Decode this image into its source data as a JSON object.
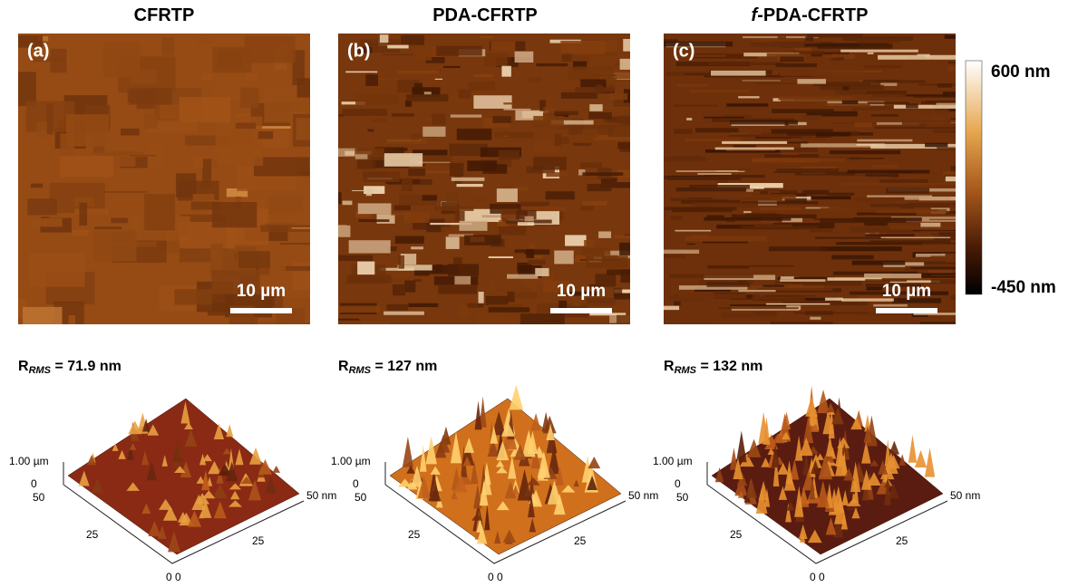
{
  "panels": [
    {
      "title": "CFRTP",
      "label": "(a)",
      "scale_bar": "10 µm",
      "rms": {
        "symbol": "R",
        "subscript": "RMS",
        "text": " = 71.9 nm"
      },
      "surface_axes": {
        "z_top": "1.00 µm",
        "z_bottom": "0",
        "y_max": "50",
        "y_mid": "25",
        "origin": "0 0",
        "x_mid": "25",
        "x_max": "50 nm"
      }
    },
    {
      "title": "PDA-CFRTP",
      "label": "(b)",
      "scale_bar": "10 µm",
      "rms": {
        "symbol": "R",
        "subscript": "RMS",
        "text": " = 127 nm"
      },
      "surface_axes": {
        "z_top": "1.00 µm",
        "z_bottom": "0",
        "y_max": "50",
        "y_mid": "25",
        "origin": "0 0",
        "x_mid": "25",
        "x_max": "50 nm"
      }
    },
    {
      "title_italic": "f",
      "title": "-PDA-CFRTP",
      "label": "(c)",
      "scale_bar": "10 µm",
      "rms": {
        "symbol": "R",
        "subscript": "RMS",
        "text": " = 132 nm"
      },
      "surface_axes": {
        "z_top": "1.00 µm",
        "z_bottom": "0",
        "y_max": "50",
        "y_mid": "25",
        "origin": "0 0",
        "x_mid": "25",
        "x_max": "50 nm"
      }
    }
  ],
  "colorbar": {
    "max": "600 nm",
    "min": "-450 nm"
  }
}
